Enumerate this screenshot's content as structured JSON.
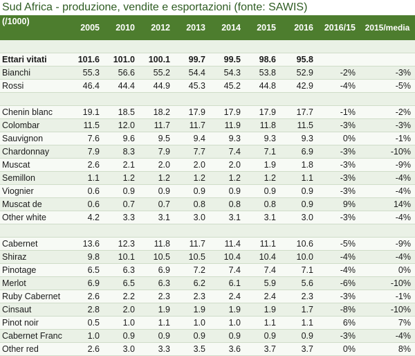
{
  "title": "Sud Africa - produzione, vendite e esportazioni (fonte: SAWIS)",
  "header": {
    "unit": "(/1000)",
    "columns": [
      "2005",
      "2010",
      "2012",
      "2013",
      "2014",
      "2015",
      "2016",
      "2016/15",
      "2015/media"
    ]
  },
  "rows": [
    {
      "label": "Ettari vitati",
      "bold": true,
      "values": [
        "101.6",
        "101.0",
        "100.1",
        "99.7",
        "99.5",
        "98.6",
        "95.8",
        "",
        ""
      ]
    },
    {
      "label": "Bianchi",
      "values": [
        "55.3",
        "56.6",
        "55.2",
        "54.4",
        "54.3",
        "53.8",
        "52.9",
        "-2%",
        "-3%"
      ]
    },
    {
      "label": "Rossi",
      "values": [
        "46.4",
        "44.4",
        "44.9",
        "45.3",
        "45.2",
        "44.8",
        "42.9",
        "-4%",
        "-5%"
      ]
    },
    {
      "blank": true
    },
    {
      "label": "Chenin blanc",
      "values": [
        "19.1",
        "18.5",
        "18.2",
        "17.9",
        "17.9",
        "17.9",
        "17.7",
        "-1%",
        "-2%"
      ]
    },
    {
      "label": "Colombar",
      "values": [
        "11.5",
        "12.0",
        "11.7",
        "11.7",
        "11.9",
        "11.8",
        "11.5",
        "-3%",
        "-3%"
      ]
    },
    {
      "label": "Sauvignon",
      "values": [
        "7.6",
        "9.6",
        "9.5",
        "9.4",
        "9.3",
        "9.3",
        "9.3",
        "0%",
        "-1%"
      ]
    },
    {
      "label": "Chardonnay",
      "values": [
        "7.9",
        "8.3",
        "7.9",
        "7.7",
        "7.4",
        "7.1",
        "6.9",
        "-3%",
        "-10%"
      ]
    },
    {
      "label": "Muscat",
      "values": [
        "2.6",
        "2.1",
        "2.0",
        "2.0",
        "2.0",
        "1.9",
        "1.8",
        "-3%",
        "-9%"
      ]
    },
    {
      "label": "Semillon",
      "values": [
        "1.1",
        "1.2",
        "1.2",
        "1.2",
        "1.2",
        "1.2",
        "1.1",
        "-3%",
        "-4%"
      ]
    },
    {
      "label": "Viognier",
      "values": [
        "0.6",
        "0.9",
        "0.9",
        "0.9",
        "0.9",
        "0.9",
        "0.9",
        "-3%",
        "-4%"
      ]
    },
    {
      "label": "Muscat de",
      "values": [
        "0.6",
        "0.7",
        "0.7",
        "0.8",
        "0.8",
        "0.8",
        "0.9",
        "9%",
        "14%"
      ]
    },
    {
      "label": "Other white",
      "values": [
        "4.2",
        "3.3",
        "3.1",
        "3.0",
        "3.1",
        "3.1",
        "3.0",
        "-3%",
        "-4%"
      ]
    },
    {
      "blank": true
    },
    {
      "label": "Cabernet",
      "values": [
        "13.6",
        "12.3",
        "11.8",
        "11.7",
        "11.4",
        "11.1",
        "10.6",
        "-5%",
        "-9%"
      ]
    },
    {
      "label": "Shiraz",
      "values": [
        "9.8",
        "10.1",
        "10.5",
        "10.5",
        "10.4",
        "10.4",
        "10.0",
        "-4%",
        "-4%"
      ]
    },
    {
      "label": "Pinotage",
      "values": [
        "6.5",
        "6.3",
        "6.9",
        "7.2",
        "7.4",
        "7.4",
        "7.1",
        "-4%",
        "0%"
      ]
    },
    {
      "label": "Merlot",
      "values": [
        "6.9",
        "6.5",
        "6.3",
        "6.2",
        "6.1",
        "5.9",
        "5.6",
        "-6%",
        "-10%"
      ]
    },
    {
      "label": "Ruby Cabernet",
      "values": [
        "2.6",
        "2.2",
        "2.3",
        "2.3",
        "2.4",
        "2.4",
        "2.3",
        "-3%",
        "-1%"
      ]
    },
    {
      "label": "Cinsaut",
      "values": [
        "2.8",
        "2.0",
        "1.9",
        "1.9",
        "1.9",
        "1.9",
        "1.7",
        "-8%",
        "-10%"
      ]
    },
    {
      "label": "Pinot noir",
      "values": [
        "0.5",
        "1.0",
        "1.1",
        "1.0",
        "1.0",
        "1.1",
        "1.1",
        "6%",
        "7%"
      ]
    },
    {
      "label": "Cabernet Franc",
      "values": [
        "1.0",
        "0.9",
        "0.9",
        "0.9",
        "0.9",
        "0.9",
        "0.9",
        "-3%",
        "-4%"
      ]
    },
    {
      "label": "Other red",
      "values": [
        "2.6",
        "3.0",
        "3.3",
        "3.5",
        "3.6",
        "3.7",
        "3.7",
        "0%",
        "8%"
      ]
    }
  ]
}
